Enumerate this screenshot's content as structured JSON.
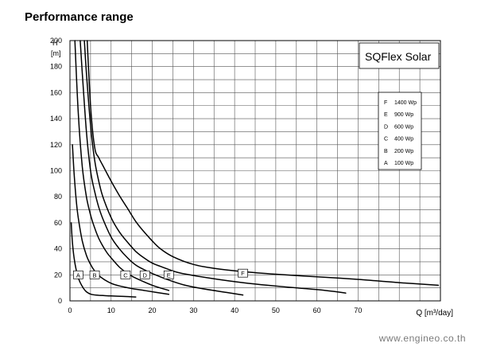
{
  "page": {
    "title": "Performance range",
    "watermark": "www.engineo.co.th"
  },
  "chart_data": {
    "type": "line",
    "title": "SQFlex Solar",
    "xlabel": "Q [m³/day]",
    "ylabel_top": "H",
    "ylabel_unit": "[m]",
    "xlim": [
      0,
      90
    ],
    "ylim": [
      0,
      200
    ],
    "x_ticks": [
      0,
      10,
      20,
      30,
      40,
      50,
      60,
      70
    ],
    "y_ticks": [
      0,
      20,
      40,
      60,
      80,
      100,
      120,
      140,
      160,
      180,
      200
    ],
    "grid": true,
    "legend_position": "top-right",
    "legend": [
      {
        "code": "F",
        "label": "1400 Wp"
      },
      {
        "code": "E",
        "label": "900 Wp"
      },
      {
        "code": "D",
        "label": "600 Wp"
      },
      {
        "code": "C",
        "label": "400 Wp"
      },
      {
        "code": "B",
        "label": "200 Wp"
      },
      {
        "code": "A",
        "label": "100 Wp"
      }
    ],
    "series": [
      {
        "name": "A",
        "label_at": [
          2,
          20
        ],
        "x": [
          0.3,
          0.6,
          1.0,
          1.5,
          2.0,
          2.5,
          3.2,
          4.0,
          5.2,
          7.0,
          10.0,
          13.0,
          16.0
        ],
        "y": [
          60,
          45,
          33,
          24,
          18,
          14,
          10,
          7,
          5,
          4.3,
          3.8,
          3.4,
          3.0
        ]
      },
      {
        "name": "B",
        "label_at": [
          6,
          20
        ],
        "x": [
          0.6,
          1.0,
          1.5,
          2.0,
          3.0,
          4.0,
          5.0,
          6.0,
          7.0,
          8.5,
          10.0,
          12.0,
          15.0,
          18.0,
          21.0,
          24.0
        ],
        "y": [
          120,
          98,
          78,
          64,
          46,
          35,
          28,
          23,
          19.5,
          16,
          13.5,
          11.5,
          9.5,
          8,
          6.5,
          5
        ]
      },
      {
        "name": "C",
        "label_at": [
          13.5,
          20
        ],
        "x": [
          1.2,
          2.0,
          3.0,
          4.0,
          5.0,
          6.0,
          7.0,
          8.0,
          9.0,
          10.0,
          12.0,
          14.0,
          16.0,
          20.0,
          24.0
        ],
        "y": [
          200,
          145,
          103,
          80,
          66,
          56,
          48,
          42,
          37,
          33,
          26,
          21,
          17.5,
          12,
          8
        ]
      },
      {
        "name": "D",
        "label_at": [
          18.2,
          20
        ],
        "x": [
          2.5,
          3.0,
          4.0,
          5.0,
          6.0,
          7.0,
          8.0,
          10.0,
          12.0,
          14.0,
          16.0,
          18.0,
          20.0,
          24.0,
          28.0,
          32.0,
          38.0,
          42.0
        ],
        "y": [
          200,
          175,
          130,
          100,
          84,
          72,
          63,
          49,
          40,
          33,
          27.5,
          24,
          21,
          16,
          12,
          9.5,
          6.5,
          4.5
        ]
      },
      {
        "name": "E",
        "label_at": [
          24,
          20
        ],
        "x": [
          3.5,
          4.0,
          5.0,
          6.0,
          7.0,
          8.0,
          10.0,
          12.0,
          14.0,
          16.0,
          18.0,
          20.0,
          22.0,
          26.0,
          30.0,
          36.0,
          42.0,
          48.0,
          55.0,
          62.0,
          67.0
        ],
        "y": [
          200,
          175,
          135,
          108,
          92,
          80,
          64,
          53,
          45,
          38,
          33,
          29,
          26.5,
          22,
          19.5,
          16.5,
          14,
          12,
          10,
          8,
          6
        ]
      },
      {
        "name": "F",
        "label_at": [
          42,
          21.3
        ],
        "x": [
          4.2,
          5.0,
          6.0,
          7.0,
          8.0,
          10.0,
          12.0,
          14.0,
          16.0,
          18.0,
          20.0,
          22.0,
          25.0,
          30.0,
          35.0,
          42.0,
          50.0,
          60.0,
          70.0,
          80.0,
          89.5
        ],
        "y": [
          200,
          150,
          118,
          110,
          104,
          92,
          81,
          71,
          61,
          53,
          46,
          40,
          34,
          28,
          25,
          22.5,
          20.5,
          18.5,
          16.5,
          14,
          12
        ]
      }
    ]
  }
}
